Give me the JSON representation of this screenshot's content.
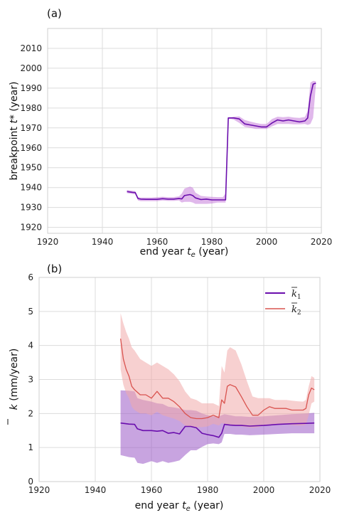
{
  "chart_data": [
    {
      "type": "line",
      "panel_label": "(a)",
      "xlabel": "end year t_e (year)",
      "xlabel_parts": [
        "end year ",
        "t",
        "e",
        " (year)"
      ],
      "ylabel": "breakpoint t* (year)",
      "ylabel_parts": [
        "breakpoint ",
        "t",
        "*",
        "  (year)"
      ],
      "xlim": [
        1920,
        2020
      ],
      "ylim": [
        1917,
        2020
      ],
      "xticks": [
        1920,
        1940,
        1960,
        1980,
        2000,
        2020
      ],
      "yticks": [
        1920,
        1930,
        1940,
        1950,
        1960,
        1970,
        1980,
        1990,
        2000,
        2010
      ],
      "grid": true,
      "series": [
        {
          "color": "#6a0dad",
          "band_color": "#c77ddb",
          "x": [
            1949,
            1951,
            1952,
            1953,
            1954,
            1956,
            1958,
            1960,
            1962,
            1964,
            1966,
            1968,
            1969,
            1970,
            1972,
            1973,
            1974,
            1976,
            1978,
            1980,
            1982,
            1984,
            1985,
            1986,
            1987,
            1988,
            1990,
            1992,
            1994,
            1996,
            1998,
            2000,
            2002,
            2004,
            2006,
            2008,
            2010,
            2012,
            2014,
            2015,
            2016,
            2017,
            2018
          ],
          "y": [
            1938,
            1937.6,
            1937.5,
            1934.5,
            1934.2,
            1934.1,
            1934.1,
            1934.1,
            1934.4,
            1934.2,
            1934.2,
            1934.5,
            1934.3,
            1936,
            1936.5,
            1936,
            1934.8,
            1934,
            1934.2,
            1933.8,
            1933.8,
            1933.8,
            1933.8,
            1975,
            1975,
            1975,
            1974.5,
            1972,
            1971.5,
            1971,
            1970.5,
            1970.5,
            1972.5,
            1974,
            1973.5,
            1974,
            1973.5,
            1973,
            1973.5,
            1975,
            1986,
            1992,
            1992.5
          ],
          "lower": [
            1937.2,
            1936.8,
            1936.6,
            1933.5,
            1933.2,
            1933.2,
            1933.2,
            1933.2,
            1933.5,
            1933.3,
            1933.3,
            1933.5,
            1932.5,
            1932.8,
            1932.8,
            1932.5,
            1931.8,
            1931.8,
            1931.8,
            1932,
            1932.5,
            1932.5,
            1932.5,
            1974.5,
            1974.5,
            1974.2,
            1972.5,
            1970.5,
            1970,
            1969.5,
            1969.5,
            1969.5,
            1970.8,
            1972,
            1972,
            1972,
            1971.8,
            1971.8,
            1972,
            1971.5,
            1972,
            1975,
            1991.5
          ],
          "upper": [
            1938.8,
            1938.4,
            1938.2,
            1935.2,
            1935,
            1935,
            1935,
            1935.2,
            1935.4,
            1935.2,
            1935.2,
            1935.6,
            1937,
            1939.5,
            1940.5,
            1940,
            1937.5,
            1935.8,
            1935.5,
            1935.3,
            1935.2,
            1935.2,
            1937,
            1975.4,
            1975.4,
            1975.6,
            1975.8,
            1974,
            1973.2,
            1972.5,
            1972,
            1972,
            1974.5,
            1975.6,
            1975.4,
            1975.6,
            1975.2,
            1975,
            1975.5,
            1978.5,
            1992.8,
            1993.6,
            1993.5
          ]
        }
      ]
    },
    {
      "type": "line",
      "panel_label": "(b)",
      "xlabel": "end year t_e (year)",
      "xlabel_parts": [
        "end year ",
        "t",
        "e",
        " (year)"
      ],
      "ylabel": "k̄ (mm/year)",
      "ylabel_parts": [
        "k",
        "  (mm/year)"
      ],
      "xlim": [
        1920,
        2020
      ],
      "ylim": [
        0,
        6
      ],
      "xticks": [
        1920,
        1940,
        1960,
        1980,
        2000,
        2020
      ],
      "yticks": [
        0,
        1,
        2,
        3,
        4,
        5,
        6
      ],
      "grid": true,
      "legend": "top-right",
      "series": [
        {
          "name": "k̄1",
          "name_parts": [
            "k",
            "1"
          ],
          "color": "#6a0dad",
          "band_color": "#9b59c6",
          "x": [
            1949,
            1952,
            1954,
            1955,
            1957,
            1960,
            1962,
            1964,
            1966,
            1968,
            1970,
            1972,
            1974,
            1976,
            1978,
            1980,
            1982,
            1984,
            1985,
            1986,
            1988,
            1990,
            1992,
            1995,
            2000,
            2005,
            2010,
            2015,
            2018
          ],
          "y": [
            1.72,
            1.69,
            1.68,
            1.55,
            1.5,
            1.5,
            1.48,
            1.5,
            1.42,
            1.44,
            1.4,
            1.62,
            1.62,
            1.58,
            1.42,
            1.38,
            1.35,
            1.3,
            1.42,
            1.68,
            1.66,
            1.65,
            1.65,
            1.63,
            1.65,
            1.68,
            1.7,
            1.71,
            1.72
          ],
          "lower": [
            0.78,
            0.72,
            0.7,
            0.55,
            0.52,
            0.6,
            0.55,
            0.6,
            0.55,
            0.58,
            0.62,
            0.78,
            0.92,
            0.92,
            1.02,
            1.1,
            1.12,
            1.1,
            1.15,
            1.4,
            1.4,
            1.38,
            1.38,
            1.36,
            1.38,
            1.4,
            1.42,
            1.42,
            1.42
          ],
          "upper": [
            2.68,
            2.67,
            2.65,
            2.45,
            2.4,
            2.35,
            2.3,
            2.28,
            2.2,
            2.18,
            2.15,
            2.1,
            2.1,
            2.08,
            2.0,
            1.95,
            1.92,
            1.92,
            1.95,
            1.98,
            1.95,
            1.92,
            1.92,
            1.9,
            1.92,
            1.95,
            1.98,
            2.0,
            2.02
          ]
        },
        {
          "name": "k̄2",
          "name_parts": [
            "k",
            "2"
          ],
          "color": "#d9534f",
          "band_color": "#f0a9a9",
          "x": [
            1949,
            1950,
            1951,
            1952,
            1953,
            1954,
            1956,
            1958,
            1960,
            1962,
            1964,
            1966,
            1968,
            1970,
            1972,
            1974,
            1976,
            1978,
            1980,
            1982,
            1984,
            1985,
            1986,
            1987,
            1988,
            1990,
            1992,
            1994,
            1996,
            1998,
            2000,
            2002,
            2004,
            2006,
            2008,
            2010,
            2012,
            2014,
            2015,
            2016,
            2017,
            2018
          ],
          "y": [
            4.2,
            3.6,
            3.3,
            3.1,
            2.8,
            2.7,
            2.55,
            2.55,
            2.45,
            2.65,
            2.45,
            2.45,
            2.35,
            2.2,
            2.0,
            1.88,
            1.85,
            1.85,
            1.88,
            1.95,
            1.88,
            2.4,
            2.3,
            2.8,
            2.85,
            2.78,
            2.5,
            2.2,
            1.95,
            1.95,
            2.1,
            2.2,
            2.15,
            2.15,
            2.15,
            2.1,
            2.1,
            2.1,
            2.15,
            2.55,
            2.75,
            2.7
          ],
          "lower": [
            3.3,
            2.85,
            2.6,
            2.45,
            2.2,
            2.1,
            2.0,
            2.0,
            1.95,
            2.05,
            1.95,
            1.9,
            1.85,
            1.78,
            1.65,
            1.6,
            1.6,
            1.6,
            1.62,
            1.7,
            1.65,
            1.72,
            1.7,
            1.68,
            1.68,
            1.66,
            1.62,
            1.6,
            1.58,
            1.6,
            1.65,
            1.68,
            1.68,
            1.68,
            1.68,
            1.66,
            1.65,
            1.65,
            1.68,
            1.95,
            2.3,
            2.35
          ],
          "upper": [
            4.95,
            4.65,
            4.4,
            4.2,
            3.95,
            3.85,
            3.6,
            3.5,
            3.4,
            3.5,
            3.4,
            3.3,
            3.15,
            2.95,
            2.65,
            2.45,
            2.4,
            2.3,
            2.3,
            2.3,
            2.22,
            3.4,
            3.2,
            3.85,
            3.95,
            3.85,
            3.45,
            2.95,
            2.5,
            2.45,
            2.45,
            2.45,
            2.4,
            2.4,
            2.4,
            2.38,
            2.36,
            2.35,
            2.4,
            2.8,
            3.1,
            3.05
          ]
        }
      ]
    }
  ]
}
